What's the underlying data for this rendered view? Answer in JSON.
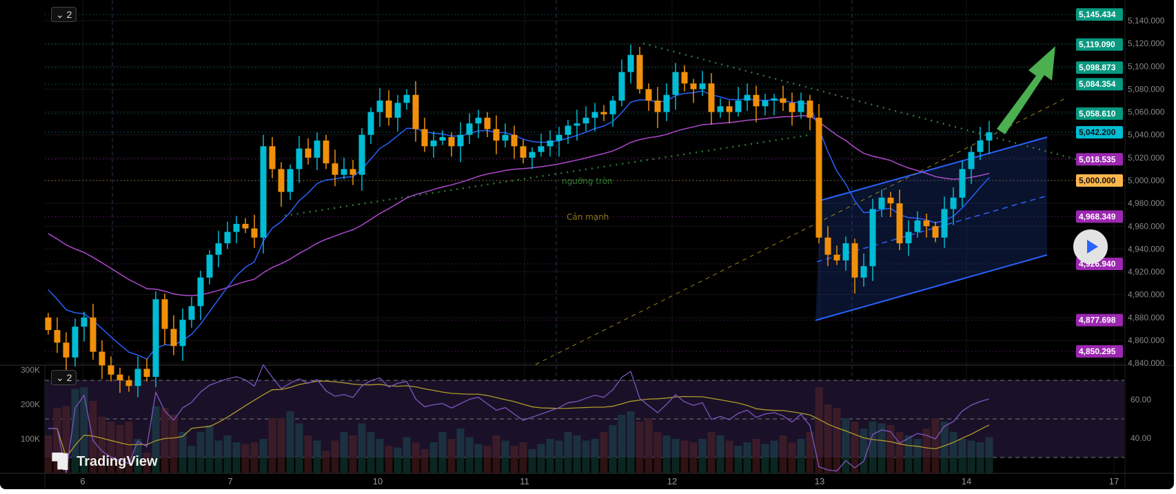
{
  "chart_data": {
    "type": "candlestick",
    "title": "",
    "x_tick_labels": [
      "6",
      "7",
      "10",
      "11",
      "12",
      "13",
      "14",
      "17"
    ],
    "price_axis": {
      "ticks": [
        4840,
        4860,
        4880,
        4900,
        4920,
        4940,
        4960,
        4980,
        5000,
        5020,
        5040,
        5060,
        5080,
        5100,
        5120,
        5140
      ],
      "format": "3 decimals",
      "range": [
        4838,
        5158
      ]
    },
    "price_labels": [
      {
        "value": "5,145.434",
        "color": "#089981"
      },
      {
        "value": "5,119.090",
        "color": "#089981"
      },
      {
        "value": "5,098.873",
        "color": "#089981"
      },
      {
        "value": "5,084.354",
        "color": "#089981"
      },
      {
        "value": "5,058.610",
        "color": "#089981"
      },
      {
        "value": "5,042.200",
        "color": "#00bcd4"
      },
      {
        "value": "5,018.535",
        "color": "#9c27b0"
      },
      {
        "value": "5,000.000",
        "color": "#ffb74d"
      },
      {
        "value": "4,968.349",
        "color": "#9c27b0"
      },
      {
        "value": "4,926.940",
        "color": "#9c27b0"
      },
      {
        "value": "4,877.698",
        "color": "#9c27b0"
      },
      {
        "value": "4,850.295",
        "color": "#9c27b0"
      }
    ],
    "annotations": [
      "ngưỡng tròn",
      "Cản mạnh"
    ],
    "closes": [
      4869,
      4858,
      4845,
      4872,
      4880,
      4850,
      4838,
      4830,
      4825,
      4820,
      4835,
      4828,
      4896,
      4870,
      4855,
      4878,
      4890,
      4915,
      4935,
      4945,
      4955,
      4962,
      4958,
      4950,
      5030,
      5010,
      4990,
      5010,
      5028,
      5020,
      5035,
      5015,
      5005,
      5010,
      5005,
      5040,
      5060,
      5070,
      5055,
      5068,
      5075,
      5045,
      5030,
      5035,
      5038,
      5030,
      5040,
      5050,
      5055,
      5045,
      5035,
      5040,
      5030,
      5020,
      5025,
      5030,
      5035,
      5040,
      5048,
      5050,
      5055,
      5060,
      5058,
      5070,
      5095,
      5110,
      5080,
      5070,
      5060,
      5075,
      5095,
      5085,
      5080,
      5085,
      5060,
      5065,
      5060,
      5070,
      5075,
      5065,
      5070,
      5072,
      5068,
      5060,
      5070,
      5055,
      4950,
      4935,
      4930,
      4945,
      4915,
      4925,
      4975,
      4985,
      4980,
      4945,
      4955,
      4965,
      4960,
      4950,
      4975,
      4985,
      5010,
      5025,
      5035,
      5042.2
    ],
    "first_open": 4880,
    "ma_seeds": {
      "fast": 4912,
      "slow": 4958
    },
    "volume_axis": {
      "ticks": [
        "100K",
        "200K",
        "300K"
      ],
      "values": [
        100,
        200,
        300
      ]
    },
    "volumes_k": [
      110,
      190,
      195,
      245,
      250,
      210,
      165,
      150,
      140,
      150,
      100,
      60,
      195,
      190,
      170,
      120,
      80,
      120,
      140,
      95,
      110,
      90,
      85,
      90,
      100,
      160,
      160,
      180,
      145,
      110,
      95,
      65,
      95,
      120,
      110,
      145,
      120,
      100,
      80,
      75,
      105,
      90,
      70,
      90,
      120,
      100,
      130,
      105,
      85,
      80,
      110,
      95,
      80,
      90,
      70,
      85,
      100,
      95,
      120,
      110,
      95,
      100,
      120,
      140,
      170,
      180,
      150,
      160,
      120,
      110,
      100,
      95,
      90,
      100,
      120,
      110,
      95,
      80,
      90,
      100,
      85,
      95,
      110,
      90,
      100,
      120,
      250,
      200,
      190,
      160,
      150,
      130,
      150,
      145,
      140,
      120,
      110,
      100,
      130,
      160,
      150,
      120,
      100,
      95,
      90,
      105
    ],
    "rsi_axis": {
      "ticks": [
        "60.00",
        "40.00"
      ],
      "values": [
        60,
        40
      ]
    },
    "rsi_levels": [
      70,
      50,
      30
    ]
  }
}
